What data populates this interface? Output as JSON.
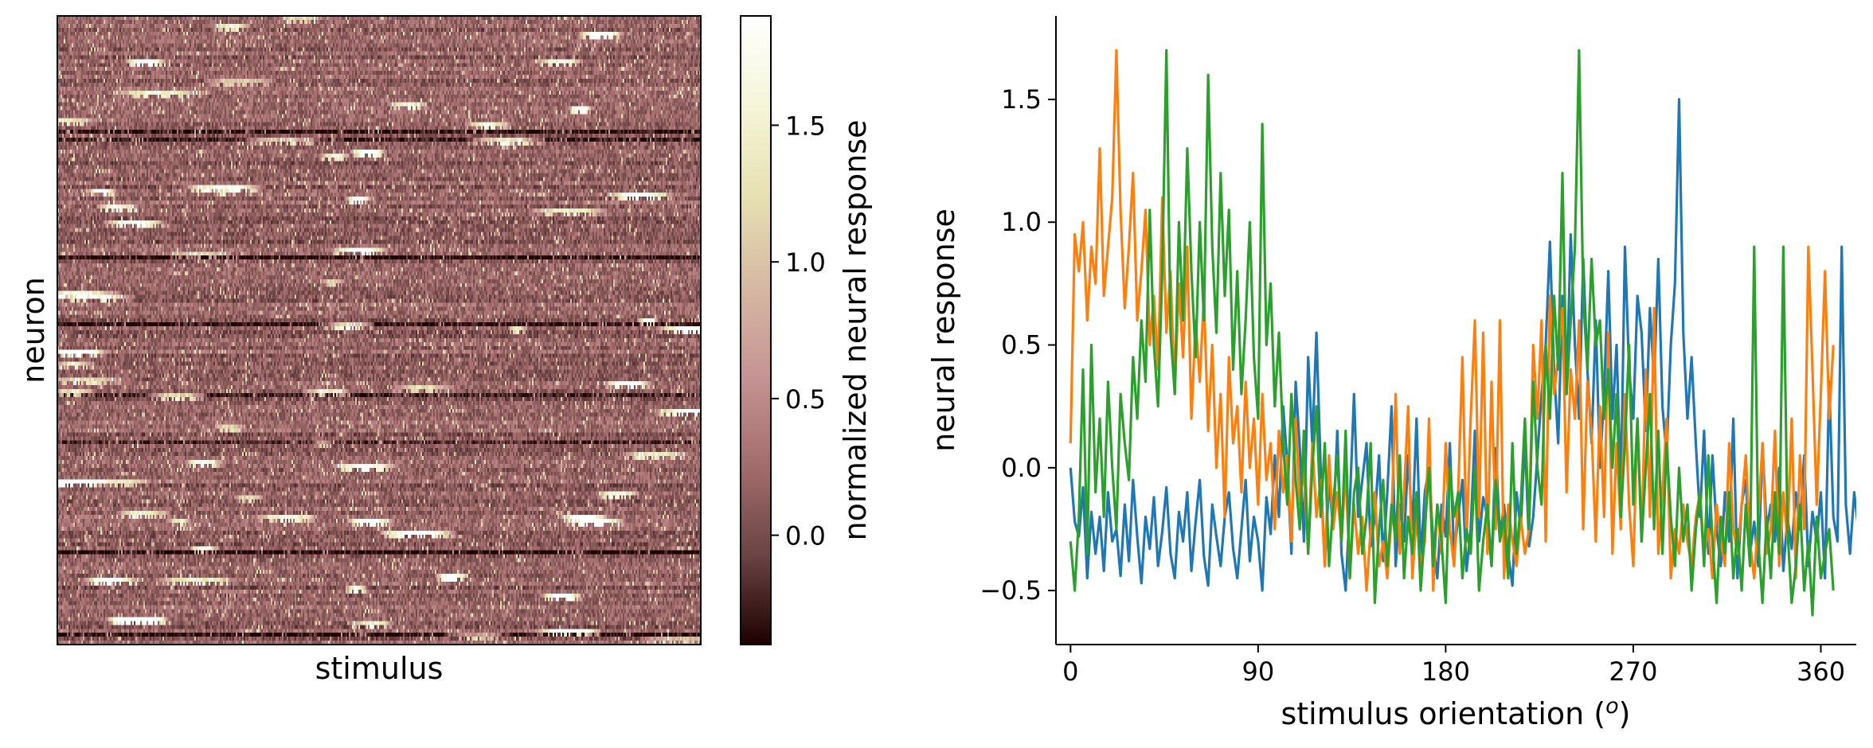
{
  "chart_data": [
    {
      "type": "heatmap",
      "xlabel": "stimulus",
      "ylabel": "neuron",
      "colorbar": {
        "label": "normalized neural response",
        "range": [
          -0.4,
          1.9
        ],
        "ticks": [
          -0.0,
          0.5,
          1.0,
          1.5
        ],
        "tick_labels": [
          "0.0",
          "0.5",
          "1.0",
          "1.5"
        ],
        "colormap": "pink",
        "stops": [
          "#1e0000",
          "#6b4444",
          "#a46d6d",
          "#c69494",
          "#d6b9a3",
          "#e6e0b2",
          "#f5f5d8",
          "#ffffff"
        ]
      }
    },
    {
      "type": "line",
      "xlabel": "stimulus orientation (",
      "xlabel_sup": "o",
      "xlabel_end": ")",
      "ylabel": "neural response",
      "xlim": [
        -7,
        377
      ],
      "ylim": [
        -0.72,
        1.84
      ],
      "xticks": [
        0,
        90,
        180,
        270,
        360
      ],
      "xtick_labels": [
        "0",
        "90",
        "180",
        "270",
        "360"
      ],
      "yticks": [
        -0.5,
        0.0,
        0.5,
        1.0,
        1.5
      ],
      "ytick_labels": [
        "−0.5",
        "0.0",
        "0.5",
        "1.0",
        "1.5"
      ],
      "x_step": 2,
      "series": [
        {
          "color": "#1f77b4",
          "values": [
            0.0,
            -0.22,
            -0.28,
            -0.08,
            -0.45,
            -0.18,
            -0.35,
            -0.2,
            -0.42,
            -0.1,
            -0.3,
            -0.25,
            -0.44,
            -0.15,
            -0.38,
            -0.05,
            -0.28,
            -0.47,
            -0.2,
            -0.33,
            -0.12,
            -0.4,
            -0.26,
            -0.08,
            -0.35,
            -0.45,
            -0.18,
            -0.3,
            -0.1,
            -0.42,
            -0.22,
            -0.05,
            -0.36,
            -0.48,
            -0.15,
            -0.28,
            -0.4,
            -0.2,
            -0.1,
            -0.33,
            -0.45,
            -0.25,
            -0.05,
            -0.38,
            -0.2,
            -0.3,
            -0.5,
            -0.12,
            -0.27,
            0.05,
            -0.2,
            0.25,
            0.02,
            -0.35,
            0.35,
            0.08,
            -0.3,
            0.45,
            0.1,
            0.55,
            0.0,
            -0.4,
            -0.05,
            -0.25,
            0.15,
            -0.35,
            -0.5,
            -0.15,
            0.3,
            -0.2,
            -0.05,
            0.1,
            -0.32,
            -0.2,
            0.05,
            -0.38,
            -0.1,
            0.25,
            -0.4,
            -0.15,
            -0.3,
            0.05,
            -0.25,
            0.2,
            -0.38,
            -0.1,
            0.0,
            -0.3,
            -0.45,
            -0.15,
            -0.28,
            0.1,
            -0.35,
            -0.2,
            -0.05,
            -0.42,
            -0.25,
            0.15,
            -0.3,
            -0.12,
            -0.2,
            -0.4,
            0.08,
            -0.28,
            -0.15,
            -0.35,
            -0.48,
            -0.1,
            -0.25,
            0.12,
            -0.32,
            -0.2,
            0.05,
            0.3,
            0.5,
            0.92,
            0.4,
            0.1,
            0.7,
            0.3,
            0.95,
            0.5,
            0.2,
            0.85,
            0.4,
            0.1,
            0.6,
            0.0,
            0.3,
            0.8,
            0.2,
            0.5,
            -0.1,
            0.9,
            0.4,
            0.2,
            0.7,
            0.55,
            0.15,
            0.65,
            0.35,
            0.85,
            0.25,
            0.05,
            0.5,
            0.75,
            1.5,
            0.55,
            0.2,
            0.45,
            0.1,
            -0.2,
            0.15,
            -0.35,
            0.05,
            -0.25,
            -0.4,
            -0.1,
            -0.3,
            0.2,
            -0.45,
            -0.15,
            -0.05,
            -0.35,
            -0.22,
            -0.4,
            0.1,
            -0.25,
            -0.15,
            -0.3,
            0.0,
            -0.42,
            -0.2,
            -0.33,
            -0.1,
            -0.25,
            0.05,
            -0.4,
            -0.18,
            -0.3,
            -0.1,
            -0.45,
            0.35,
            -0.2,
            -0.3,
            0.9,
            -0.15,
            -0.35,
            -0.1,
            -0.25,
            0.0,
            -0.4,
            -0.15,
            -0.3,
            0.1
          ]
        },
        {
          "color": "#ff7f0e",
          "values": [
            0.1,
            0.95,
            0.8,
            1.0,
            0.6,
            0.9,
            0.75,
            1.3,
            0.7,
            0.9,
            1.1,
            1.7,
            1.05,
            0.65,
            0.9,
            1.2,
            0.6,
            0.8,
            1.05,
            0.5,
            0.7,
            0.4,
            1.1,
            0.55,
            0.8,
            0.3,
            0.75,
            0.45,
            0.9,
            0.2,
            0.6,
            0.35,
            0.7,
            0.15,
            0.5,
            0.0,
            0.3,
            -0.2,
            0.45,
            0.1,
            0.25,
            -0.1,
            0.35,
            0.0,
            0.2,
            -0.15,
            0.3,
            -0.05,
            0.1,
            -0.25,
            0.15,
            -0.1,
            0.05,
            -0.3,
            0.2,
            -0.15,
            0.0,
            -0.35,
            0.1,
            -0.2,
            -0.05,
            -0.4,
            0.05,
            -0.25,
            -0.1,
            -0.3,
            0.0,
            -0.45,
            -0.15,
            -0.35,
            -0.2,
            -0.5,
            -0.25,
            -0.1,
            -0.4,
            -0.3,
            -0.45,
            -0.2,
            0.3,
            -0.35,
            -0.1,
            0.25,
            -0.45,
            -0.2,
            -0.4,
            -0.3,
            0.2,
            -0.5,
            -0.15,
            -0.35,
            0.1,
            -0.25,
            -0.4,
            -0.1,
            0.45,
            -0.3,
            0.2,
            0.6,
            -0.2,
            0.55,
            -0.35,
            0.35,
            -0.25,
            0.6,
            -0.45,
            -0.15,
            -0.3,
            -0.4,
            -0.2,
            -0.35,
            -0.25,
            0.5,
            0.2,
            0.6,
            -0.3,
            0.7,
            0.3,
            0.45,
            0.65,
            -0.1,
            0.4,
            0.2,
            0.6,
            -0.25,
            0.35,
            0.15,
            -0.3,
            0.25,
            -0.2,
            0.55,
            -0.35,
            0.1,
            -0.25,
            0.3,
            -0.15,
            -0.4,
            0.2,
            -0.3,
            0.4,
            -0.2,
            0.65,
            -0.35,
            -0.1,
            0.2,
            -0.45,
            -0.25,
            -0.35,
            -0.15,
            -0.3,
            -0.4,
            -0.2,
            -0.1,
            -0.35,
            -0.25,
            -0.45,
            -0.15,
            -0.3,
            -0.4,
            0.1,
            -0.25,
            -0.35,
            -0.15,
            0.05,
            -0.3,
            -0.45,
            -0.2,
            0.1,
            -0.35,
            -0.25,
            0.15,
            -0.4,
            -0.1,
            -0.3,
            0.2,
            -0.45,
            0.05,
            -0.25,
            0.9,
            0.4,
            -0.15,
            0.3,
            0.8,
            0.2,
            0.5
          ]
        },
        {
          "color": "#2ca02c",
          "values": [
            -0.3,
            -0.5,
            -0.2,
            0.4,
            -0.35,
            0.5,
            -0.1,
            0.2,
            -0.2,
            0.35,
            0.0,
            -0.25,
            0.3,
            0.1,
            -0.05,
            0.45,
            0.2,
            0.6,
            0.35,
            1.05,
            0.5,
            0.25,
            0.8,
            1.7,
            0.55,
            0.3,
            1.0,
            0.6,
            1.3,
            0.8,
            0.45,
            1.0,
            0.6,
            1.6,
            0.9,
            0.55,
            1.2,
            0.7,
            1.05,
            0.4,
            0.8,
            0.3,
            0.6,
            1.0,
            0.45,
            0.2,
            1.4,
            0.5,
            0.75,
            0.25,
            0.55,
            0.1,
            -0.15,
            0.3,
            -0.05,
            -0.25,
            0.15,
            -0.35,
            0.0,
            0.25,
            -0.2,
            0.1,
            -0.4,
            -0.15,
            0.05,
            -0.3,
            0.15,
            -0.45,
            -0.1,
            0.0,
            -0.35,
            -0.2,
            0.1,
            -0.55,
            -0.25,
            -0.05,
            -0.4,
            -0.15,
            -0.3,
            0.05,
            -0.45,
            -0.2,
            -0.35,
            -0.1,
            -0.5,
            -0.25,
            0.0,
            -0.4,
            -0.15,
            -0.3,
            -0.55,
            0.0,
            -0.2,
            -0.1,
            -0.45,
            -0.25,
            -0.35,
            0.0,
            -0.5,
            -0.3,
            -0.15,
            -0.4,
            -0.05,
            -0.3,
            -0.2,
            -0.45,
            0.1,
            -0.35,
            -0.15,
            0.2,
            -0.25,
            0.35,
            0.0,
            -0.15,
            0.5,
            0.2,
            0.7,
            0.4,
            1.2,
            0.3,
            0.6,
            0.9,
            1.7,
            0.7,
            0.4,
            0.85,
            0.5,
            0.6,
            0.2,
            0.4,
            0.0,
            0.3,
            -0.2,
            0.1,
            0.5,
            -0.15,
            0.2,
            -0.3,
            0.0,
            0.3,
            -0.25,
            0.15,
            -0.35,
            0.1,
            -0.2,
            -0.4,
            0.0,
            -0.3,
            -0.15,
            -0.5,
            -0.25,
            -0.1,
            -0.4,
            0.05,
            -0.3,
            -0.55,
            -0.2,
            -0.35,
            -0.1,
            -0.45,
            -0.25,
            -0.5,
            -0.15,
            -0.4,
            0.9,
            -0.3,
            -0.55,
            -0.2,
            -0.45,
            -0.1,
            -0.35,
            0.9,
            -0.25,
            -0.55,
            -0.4,
            -0.15,
            -0.5,
            -0.3,
            -0.6,
            -0.2,
            -0.45,
            -0.35,
            -0.25,
            -0.5
          ]
        }
      ]
    }
  ]
}
